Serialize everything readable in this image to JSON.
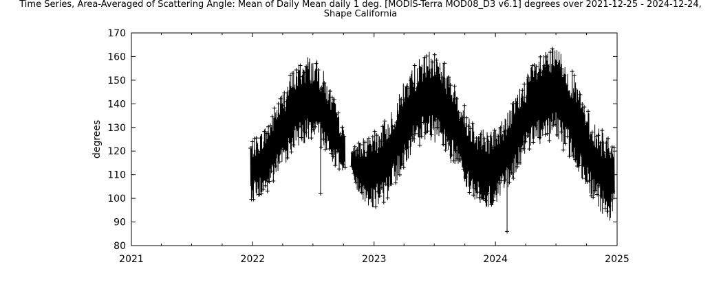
{
  "title_line1": "Time Series, Area-Averaged of Scattering Angle: Mean of Daily Mean daily 1 deg. [MODIS-Terra MOD08_D3 v6.1] degrees over 2021-12-25 - 2024-12-24,",
  "title_line2": "Shape California",
  "chart_data": {
    "type": "line",
    "title": "Time Series, Area-Averaged of Scattering Angle: Mean of Daily Mean daily 1 deg. [MODIS-Terra MOD08_D3 v6.1] degrees over 2021-12-25 - 2024-12-24, Shape California",
    "xlabel": "",
    "ylabel": "degrees",
    "xlim": [
      "2021-01-01",
      "2025-01-01"
    ],
    "ylim": [
      80,
      170
    ],
    "x_ticks": [
      "2021",
      "2022",
      "2023",
      "2024",
      "2025"
    ],
    "y_ticks": [
      80,
      90,
      100,
      110,
      120,
      130,
      140,
      150,
      160,
      170
    ],
    "grid": false,
    "line_color": "#000000",
    "marker": "+",
    "series": [
      {
        "x": [
          "2021-12-25",
          "2022-01-15",
          "2022-02-01",
          "2022-02-15",
          "2022-03-01",
          "2022-03-15",
          "2022-04-01",
          "2022-04-15",
          "2022-05-01",
          "2022-05-15",
          "2022-06-01",
          "2022-06-15",
          "2022-07-01",
          "2022-07-15",
          "2022-08-01",
          "2022-08-15",
          "2022-09-01",
          "2022-09-15",
          "2022-10-01",
          "2022-10-15",
          "2022-11-01",
          "2022-11-15",
          "2022-12-01",
          "2022-12-15",
          "2023-01-01",
          "2023-01-15",
          "2023-02-01",
          "2023-02-15",
          "2023-03-01",
          "2023-03-15",
          "2023-04-01",
          "2023-04-15",
          "2023-05-01",
          "2023-05-15",
          "2023-06-01",
          "2023-06-15",
          "2023-07-01",
          "2023-07-15",
          "2023-08-01",
          "2023-08-15",
          "2023-09-01",
          "2023-09-15",
          "2023-10-01",
          "2023-10-15",
          "2023-11-01",
          "2023-11-15",
          "2023-12-01",
          "2023-12-15",
          "2024-01-01",
          "2024-01-15",
          "2024-02-01",
          "2024-02-15",
          "2024-03-01",
          "2024-03-15",
          "2024-04-01",
          "2024-04-15",
          "2024-05-01",
          "2024-05-15",
          "2024-06-01",
          "2024-06-15",
          "2024-07-01",
          "2024-07-15",
          "2024-08-01",
          "2024-08-15",
          "2024-09-01",
          "2024-09-15",
          "2024-10-01",
          "2024-10-15",
          "2024-11-01",
          "2024-11-15",
          "2024-12-01",
          "2024-12-15",
          "2024-12-24"
        ],
        "min": [
          98,
          100,
          101,
          102,
          105,
          108,
          113,
          116,
          119,
          121,
          123,
          124,
          124,
          123,
          121,
          118,
          115,
          112,
          110,
          110,
          108,
          101,
          99,
          97,
          96,
          97,
          98,
          101,
          104,
          109,
          113,
          116,
          120,
          122,
          124,
          124,
          123,
          121,
          119,
          116,
          113,
          110,
          105,
          101,
          97,
          94,
          93,
          94,
          96,
          98,
          102,
          104,
          107,
          112,
          115,
          118,
          120,
          122,
          123,
          123,
          123,
          121,
          119,
          116,
          113,
          109,
          105,
          101,
          97,
          93,
          91,
          90,
          95
        ],
        "max": [
          123,
          127,
          130,
          133,
          137,
          141,
          146,
          150,
          154,
          157,
          160,
          162,
          161,
          160,
          156,
          150,
          144,
          137,
          130,
          125,
          121,
          125,
          127,
          126,
          128,
          132,
          134,
          137,
          141,
          145,
          150,
          154,
          157,
          160,
          161,
          162,
          163,
          162,
          159,
          154,
          149,
          145,
          140,
          137,
          134,
          131,
          128,
          128,
          129,
          132,
          135,
          138,
          143,
          147,
          151,
          155,
          158,
          160,
          162,
          163,
          164,
          163,
          160,
          156,
          151,
          146,
          140,
          135,
          131,
          129,
          128,
          128,
          125
        ],
        "mean": [
          112,
          113,
          115,
          117,
          121,
          125,
          129,
          133,
          137,
          139,
          141,
          142,
          141,
          140,
          137,
          133,
          129,
          124,
          120,
          118,
          115,
          113,
          112,
          111,
          112,
          113,
          115,
          118,
          122,
          126,
          131,
          135,
          138,
          140,
          142,
          143,
          143,
          141,
          138,
          134,
          130,
          126,
          122,
          118,
          115,
          113,
          112,
          113,
          114,
          116,
          119,
          122,
          126,
          130,
          134,
          138,
          140,
          142,
          143,
          144,
          144,
          142,
          139,
          135,
          131,
          126,
          121,
          117,
          114,
          111,
          110,
          109,
          110
        ]
      }
    ],
    "outliers": [
      {
        "x": "2022-07-24",
        "y": 102
      },
      {
        "x": "2024-02-05",
        "y": 86
      }
    ]
  }
}
